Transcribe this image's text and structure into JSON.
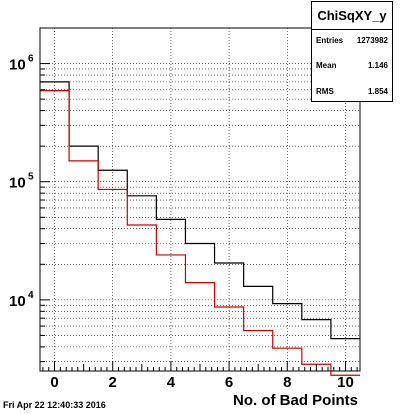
{
  "stats": {
    "title": "ChiSqXY_y",
    "rows": [
      {
        "label": "Entries",
        "value": "1273982"
      },
      {
        "label": "Mean",
        "value": "1.146"
      },
      {
        "label": "RMS",
        "value": "1.854"
      }
    ]
  },
  "datestamp": "Fri Apr 22 12:40:33 2016",
  "colors": {
    "series1": "#000000",
    "series2": "#cc0000",
    "grid": "#000000"
  },
  "chart_data": {
    "type": "histogram",
    "title": "",
    "xlabel": "No. of Bad Points",
    "ylabel": "",
    "xlim": [
      -0.5,
      10.5
    ],
    "ylim": [
      2500,
      2000000
    ],
    "yscale": "log",
    "grid": true,
    "x_ticks": [
      0,
      2,
      4,
      6,
      8,
      10
    ],
    "x_tick_labels": [
      "0",
      "2",
      "4",
      "6",
      "8",
      "10"
    ],
    "y_ticks": [
      10000,
      100000,
      1000000
    ],
    "y_tick_labels": [
      {
        "base": "10",
        "exp": "4"
      },
      {
        "base": "10",
        "exp": "5"
      },
      {
        "base": "10",
        "exp": "6"
      }
    ],
    "bins": [
      0,
      1,
      2,
      3,
      4,
      5,
      6,
      7,
      8,
      9,
      10
    ],
    "series": [
      {
        "color": "#000000",
        "values": [
          700000,
          200000,
          125000,
          76000,
          48000,
          30000,
          20500,
          13000,
          9300,
          6800,
          4700
        ]
      },
      {
        "color": "#cc0000",
        "values": [
          590000,
          150000,
          86000,
          43000,
          24000,
          14000,
          8700,
          5500,
          3900,
          2850,
          2300
        ]
      }
    ]
  }
}
